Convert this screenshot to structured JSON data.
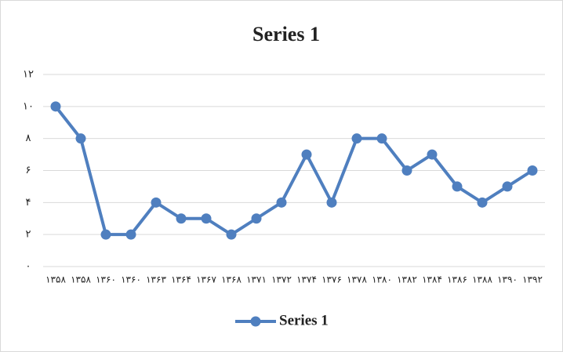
{
  "chart_data": {
    "type": "line",
    "title": "Series 1",
    "categories": [
      "۱۳۵۸",
      "۱۳۵۸",
      "۱۳۶۰",
      "۱۳۶۰",
      "۱۳۶۳",
      "۱۳۶۴",
      "۱۳۶۷",
      "۱۳۶۸",
      "۱۳۷۱",
      "۱۳۷۲",
      "۱۳۷۴",
      "۱۳۷۶",
      "۱۳۷۸",
      "۱۳۸۰",
      "۱۳۸۲",
      "۱۳۸۴",
      "۱۳۸۶",
      "۱۳۸۸",
      "۱۳۹۰",
      "۱۳۹۲"
    ],
    "series": [
      {
        "name": "Series 1",
        "color": "#4f7fbf",
        "values": [
          10,
          8,
          2,
          2,
          4,
          3,
          3,
          2,
          3,
          4,
          7,
          4,
          8,
          8,
          6,
          7,
          5,
          4,
          5,
          6
        ]
      }
    ],
    "ylim": [
      0,
      12
    ],
    "yticks": [
      {
        "value": 0,
        "label": "۰"
      },
      {
        "value": 2,
        "label": "۲"
      },
      {
        "value": 4,
        "label": "۴"
      },
      {
        "value": 6,
        "label": "۶"
      },
      {
        "value": 8,
        "label": "۸"
      },
      {
        "value": 10,
        "label": "۱۰"
      },
      {
        "value": 12,
        "label": "۱۲"
      }
    ],
    "grid": true,
    "legend": "bottom"
  }
}
